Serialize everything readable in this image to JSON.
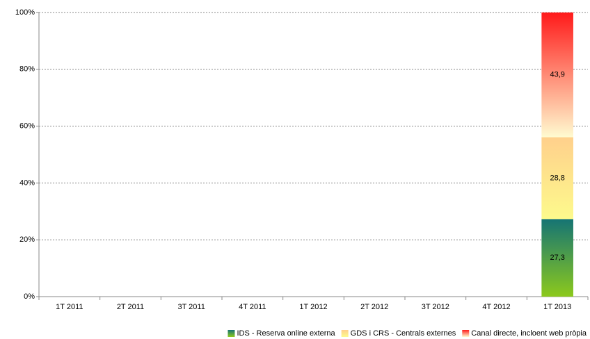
{
  "chart_data": {
    "type": "stacked_bar",
    "categories": [
      "1T 2011",
      "2T 2011",
      "3T 2011",
      "4T 2011",
      "1T 2012",
      "2T 2012",
      "3T 2012",
      "4T 2012",
      "1T 2013"
    ],
    "series": [
      {
        "name": "IDS - Reserva online externa",
        "colors": [
          "#8cc91c",
          "#157474"
        ],
        "values": [
          null,
          null,
          null,
          null,
          null,
          null,
          null,
          null,
          27.3
        ],
        "value_labels": [
          null,
          null,
          null,
          null,
          null,
          null,
          null,
          null,
          "27,3"
        ]
      },
      {
        "name": "GDS i CRS - Centrals externes",
        "colors": [
          "#fdfa8c",
          "#ffd08c"
        ],
        "values": [
          null,
          null,
          null,
          null,
          null,
          null,
          null,
          null,
          28.8
        ],
        "value_labels": [
          null,
          null,
          null,
          null,
          null,
          null,
          null,
          null,
          "28,8"
        ]
      },
      {
        "name": "Canal directe, incloent web pròpia",
        "colors": [
          "#fffbd0",
          "#ff1a1a"
        ],
        "values": [
          null,
          null,
          null,
          null,
          null,
          null,
          null,
          null,
          43.9
        ],
        "value_labels": [
          null,
          null,
          null,
          null,
          null,
          null,
          null,
          null,
          "43,9"
        ]
      }
    ],
    "ylim": [
      0,
      100
    ],
    "yticks": [
      {
        "value": 0,
        "label": "0%"
      },
      {
        "value": 20,
        "label": "20%"
      },
      {
        "value": 40,
        "label": "40%"
      },
      {
        "value": 60,
        "label": "60%"
      },
      {
        "value": 80,
        "label": "80%"
      },
      {
        "value": 100,
        "label": "100%"
      }
    ],
    "grid": true,
    "legend": "bottom-right"
  }
}
